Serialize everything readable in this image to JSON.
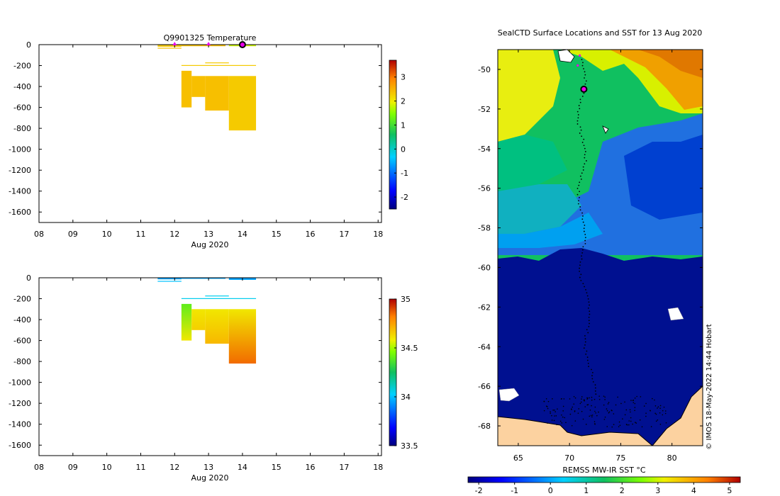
{
  "colors": {
    "sst_land": "#fcd2a0",
    "sst_ice_blue": "#001090",
    "marker_magenta": "#e800e8",
    "temp_profile": "#f5b800",
    "sal_profile_fresh": "#f5b800",
    "sal_profile_salty": "#c84000"
  },
  "chart_data": [
    {
      "type": "heatmap",
      "title": "Q9901325  Temperature",
      "xlabel": "Aug 2020",
      "ylabel": "",
      "x_ticks": [
        "08",
        "09",
        "10",
        "11",
        "12",
        "13",
        "14",
        "15",
        "16",
        "17",
        "18"
      ],
      "y_ticks": [
        "0",
        "-200",
        "-400",
        "-600",
        "-800",
        "-1000",
        "-1200",
        "-1400",
        "-1600"
      ],
      "xlim": [
        8,
        18.1
      ],
      "ylim": [
        -1700,
        0
      ],
      "colorbar": {
        "ticks": [
          "-2",
          "-1",
          "0",
          "1",
          "2",
          "3"
        ],
        "range": [
          -2.5,
          3.7
        ]
      },
      "surface_markers": [
        {
          "day": 12.0
        },
        {
          "day": 13.0
        },
        {
          "day": 14.0,
          "current": true
        }
      ],
      "profiles": [
        {
          "x0": 11.5,
          "x1": 12.2,
          "top": 0,
          "bottom": -20,
          "value": 2.3
        },
        {
          "x0": 12.2,
          "x1": 13.5,
          "top": 0,
          "bottom": -15,
          "value": 2.4
        },
        {
          "x0": 13.6,
          "x1": 14.4,
          "top": 0,
          "bottom": -15,
          "value": 1.8
        },
        {
          "x0": 11.5,
          "x1": 12.2,
          "top": -30,
          "bottom": -35,
          "value": 2.4
        },
        {
          "x0": 12.2,
          "x1": 14.4,
          "top": -195,
          "bottom": -200,
          "value": 2.3
        },
        {
          "x0": 12.9,
          "x1": 13.6,
          "top": -170,
          "bottom": -175,
          "value": 2.3
        },
        {
          "x0": 12.2,
          "x1": 12.5,
          "top": -250,
          "bottom": -600,
          "value": 2.4
        },
        {
          "x0": 12.5,
          "x1": 12.9,
          "top": -300,
          "bottom": -500,
          "value": 2.4
        },
        {
          "x0": 12.9,
          "x1": 13.6,
          "top": -300,
          "bottom": -630,
          "value": 2.4
        },
        {
          "x0": 13.6,
          "x1": 14.4,
          "top": -300,
          "bottom": -820,
          "value": 2.3
        }
      ]
    },
    {
      "type": "heatmap",
      "title": "",
      "xlabel": "Aug 2020",
      "ylabel": "",
      "x_ticks": [
        "08",
        "09",
        "10",
        "11",
        "12",
        "13",
        "14",
        "15",
        "16",
        "17",
        "18"
      ],
      "y_ticks": [
        "0",
        "-200",
        "-400",
        "-600",
        "-800",
        "-1000",
        "-1200",
        "-1400",
        "-1600"
      ],
      "xlim": [
        8,
        18.1
      ],
      "ylim": [
        -1700,
        0
      ],
      "colorbar": {
        "ticks": [
          "33.5",
          "34",
          "34.5",
          "35"
        ],
        "range": [
          33.5,
          35
        ]
      },
      "profiles": [
        {
          "x0": 11.5,
          "x1": 12.2,
          "top": 0,
          "bottom": -15,
          "value": 33.95
        },
        {
          "x0": 12.2,
          "x1": 13.5,
          "top": 0,
          "bottom": -10,
          "value": 33.95
        },
        {
          "x0": 13.6,
          "x1": 14.4,
          "top": 0,
          "bottom": -20,
          "value": 33.95
        },
        {
          "x0": 11.5,
          "x1": 12.2,
          "top": -30,
          "bottom": -35,
          "value": 34.0
        },
        {
          "x0": 12.2,
          "x1": 14.4,
          "top": -195,
          "bottom": -200,
          "value": 34.05
        },
        {
          "x0": 12.9,
          "x1": 13.6,
          "top": -170,
          "bottom": -175,
          "value": 34.05
        },
        {
          "x0": 12.2,
          "x1": 12.5,
          "top": -250,
          "bottom": -600,
          "value": 34.4,
          "bottom_value": 34.6
        },
        {
          "x0": 12.5,
          "x1": 12.9,
          "top": -300,
          "bottom": -500,
          "value": 34.6,
          "bottom_value": 34.65
        },
        {
          "x0": 12.9,
          "x1": 13.6,
          "top": -300,
          "bottom": -630,
          "value": 34.6,
          "bottom_value": 34.7
        },
        {
          "x0": 13.6,
          "x1": 14.4,
          "top": -300,
          "bottom": -820,
          "value": 34.6,
          "bottom_value": 34.85
        }
      ]
    },
    {
      "type": "map",
      "title": "SealCTD Surface Locations and SST for 13 Aug 2020",
      "xlim": [
        63,
        83
      ],
      "ylim": [
        -69,
        -49
      ],
      "x_ticks": [
        "65",
        "70",
        "75",
        "80"
      ],
      "y_ticks": [
        "-50",
        "-52",
        "-54",
        "-56",
        "-58",
        "-60",
        "-62",
        "-64",
        "-66",
        "-68"
      ],
      "colorbar": {
        "label": "REMSS MW-IR SST °C",
        "ticks": [
          "-2",
          "-1",
          "0",
          "1",
          "2",
          "3",
          "4",
          "5"
        ],
        "range": [
          -2.3,
          5.3
        ]
      },
      "current_location": {
        "lon": 71.4,
        "lat": -51.0
      },
      "recent_locations": [
        {
          "lon": 70.8,
          "lat": -49.8
        },
        {
          "lon": 71.0,
          "lat": -49.3
        }
      ],
      "credit": "© IMOS 18-May-2022 14:44 Hobart"
    }
  ]
}
